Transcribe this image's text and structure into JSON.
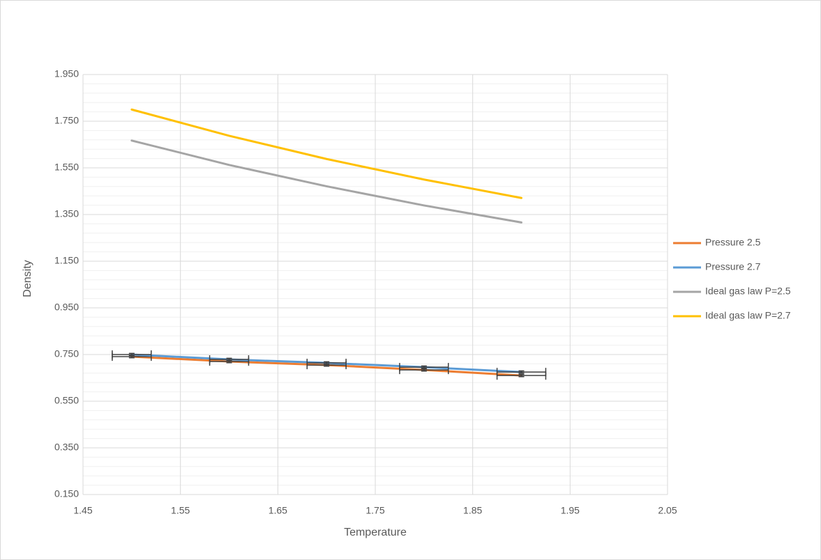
{
  "chart_data": {
    "type": "scatter-line",
    "x_label": "Temperature",
    "y_label": "Density",
    "x": [
      1.5,
      1.6,
      1.7,
      1.8,
      1.9
    ],
    "series": [
      {
        "name": "Pressure 2.5",
        "color": "#ed7d31",
        "values": [
          0.741,
          0.72,
          0.705,
          0.684,
          0.66
        ],
        "x_errors": [
          0.02,
          0.02,
          0.02,
          0.025,
          0.025
        ],
        "y_errors": [
          0.005,
          0.005,
          0.005,
          0.005,
          0.005
        ]
      },
      {
        "name": "Pressure 2.7",
        "color": "#5b9bd5",
        "values": [
          0.75,
          0.729,
          0.714,
          0.696,
          0.675
        ],
        "x_errors": [
          0.02,
          0.02,
          0.02,
          0.025,
          0.025
        ],
        "y_errors": [
          0.005,
          0.005,
          0.005,
          0.005,
          0.005
        ]
      },
      {
        "name": "Ideal gas law P=2.5",
        "color": "#a5a5a5",
        "values": [
          1.667,
          1.5625,
          1.471,
          1.389,
          1.316
        ]
      },
      {
        "name": "Ideal gas law P=2.7",
        "color": "#ffc000",
        "values": [
          1.8,
          1.6875,
          1.588,
          1.5,
          1.421
        ]
      }
    ],
    "xlim": [
      1.45,
      2.05
    ],
    "xticks": [
      1.45,
      1.55,
      1.65,
      1.75,
      1.85,
      1.95,
      2.05
    ],
    "ylim": [
      0.15,
      1.95
    ],
    "yticks": [
      {
        "value": 0.15,
        "label": "0.150"
      },
      {
        "value": 0.35,
        "label": "0.350"
      },
      {
        "value": 0.55,
        "label": "0.550"
      },
      {
        "value": 0.75,
        "label": "0.750"
      },
      {
        "value": 0.95,
        "label": "0.950"
      },
      {
        "value": 1.15,
        "label": "1.150"
      },
      {
        "value": 1.35,
        "label": "1.350"
      },
      {
        "value": 1.55,
        "label": "1.550"
      },
      {
        "value": 1.75,
        "label": "1.750"
      },
      {
        "value": 1.95,
        "label": "1.950"
      }
    ],
    "grid": true,
    "legend": "right"
  }
}
